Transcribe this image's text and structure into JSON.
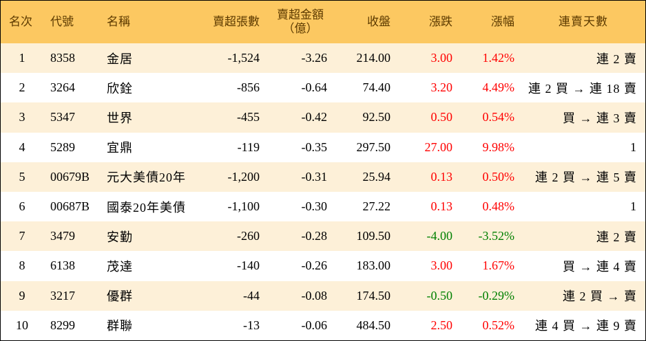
{
  "header": {
    "rank": "名次",
    "code": "代號",
    "name": "名稱",
    "net_sell_lots": "賣超張數",
    "net_sell_amount_line1": "賣超金額",
    "net_sell_amount_line2": "（億）",
    "close": "收盤",
    "change": "漲跌",
    "change_pct": "漲幅",
    "streak": "連賣天數"
  },
  "rows": [
    {
      "rank": "1",
      "code": "8358",
      "name": "金居",
      "lots": "-1,524",
      "amount": "-3.26",
      "close": "214.00",
      "change": "3.00",
      "pct": "1.42%",
      "streak": "連 2 賣",
      "dir": "up"
    },
    {
      "rank": "2",
      "code": "3264",
      "name": "欣銓",
      "lots": "-856",
      "amount": "-0.64",
      "close": "74.40",
      "change": "3.20",
      "pct": "4.49%",
      "streak": "連 2 買 → 連 18 賣",
      "dir": "up"
    },
    {
      "rank": "3",
      "code": "5347",
      "name": "世界",
      "lots": "-455",
      "amount": "-0.42",
      "close": "92.50",
      "change": "0.50",
      "pct": "0.54%",
      "streak": "買 → 連 3 賣",
      "dir": "up"
    },
    {
      "rank": "4",
      "code": "5289",
      "name": "宜鼎",
      "lots": "-119",
      "amount": "-0.35",
      "close": "297.50",
      "change": "27.00",
      "pct": "9.98%",
      "streak": "1",
      "dir": "up"
    },
    {
      "rank": "5",
      "code": "00679B",
      "name": "元大美債20年",
      "lots": "-1,200",
      "amount": "-0.31",
      "close": "25.94",
      "change": "0.13",
      "pct": "0.50%",
      "streak": "連 2 買 → 連 5 賣",
      "dir": "up"
    },
    {
      "rank": "6",
      "code": "00687B",
      "name": "國泰20年美債",
      "lots": "-1,100",
      "amount": "-0.30",
      "close": "27.22",
      "change": "0.13",
      "pct": "0.48%",
      "streak": "1",
      "dir": "up"
    },
    {
      "rank": "7",
      "code": "3479",
      "name": "安勤",
      "lots": "-260",
      "amount": "-0.28",
      "close": "109.50",
      "change": "-4.00",
      "pct": "-3.52%",
      "streak": "連 2 賣",
      "dir": "down"
    },
    {
      "rank": "8",
      "code": "6138",
      "name": "茂達",
      "lots": "-140",
      "amount": "-0.26",
      "close": "183.00",
      "change": "3.00",
      "pct": "1.67%",
      "streak": "買 → 連 4 賣",
      "dir": "up"
    },
    {
      "rank": "9",
      "code": "3217",
      "name": "優群",
      "lots": "-44",
      "amount": "-0.08",
      "close": "174.50",
      "change": "-0.50",
      "pct": "-0.29%",
      "streak": "連 2 買 → 賣",
      "dir": "down"
    },
    {
      "rank": "10",
      "code": "8299",
      "name": "群聯",
      "lots": "-13",
      "amount": "-0.06",
      "close": "484.50",
      "change": "2.50",
      "pct": "0.52%",
      "streak": "連 4 買 → 連 9 賣",
      "dir": "up"
    }
  ]
}
